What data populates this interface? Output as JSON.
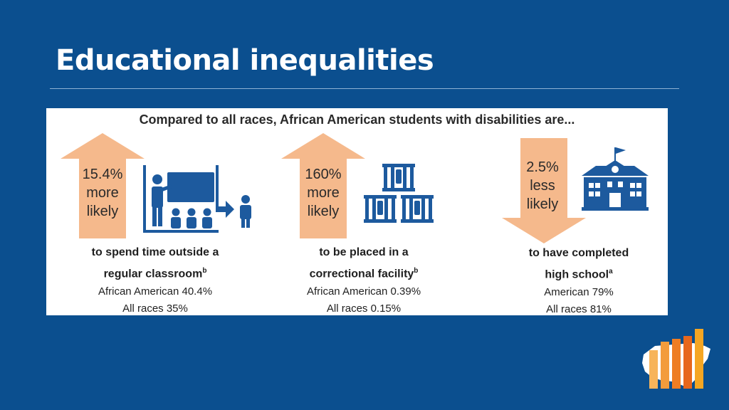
{
  "slide": {
    "title": "Educational inequalities"
  },
  "panel": {
    "heading": "Compared to all races, African American students with disabilities are...",
    "stats": [
      {
        "arrow_lines": [
          "15.4%",
          "more",
          "likely"
        ],
        "direction": "up",
        "desc_line1": "to spend time outside a",
        "desc_line2": "regular classroom",
        "superscript": "b",
        "group_line": "African American 40.4%",
        "all_line": "All races 35%",
        "icon": "classroom-icon"
      },
      {
        "arrow_lines": [
          "160%",
          "more",
          "likely"
        ],
        "direction": "up",
        "desc_line1": "to be placed in a",
        "desc_line2": "correctional facility",
        "superscript": "b",
        "group_line": "African American 0.39%",
        "all_line": "All races 0.15%",
        "icon": "jail-cells-icon"
      },
      {
        "arrow_lines": [
          "2.5%",
          "less",
          "likely"
        ],
        "direction": "down",
        "desc_line1": "to have completed",
        "desc_line2": "high school",
        "superscript": "a",
        "group_line": "American 79%",
        "all_line": "All races 81%",
        "icon": "school-building-icon"
      }
    ]
  },
  "colors": {
    "background": "#0b4f8f",
    "arrow": "#f5b98c",
    "icon": "#1d5a9e",
    "logo_bars": [
      "#f7b45a",
      "#f39c3c",
      "#ee7d23",
      "#e7671c",
      "#f5a623"
    ]
  }
}
